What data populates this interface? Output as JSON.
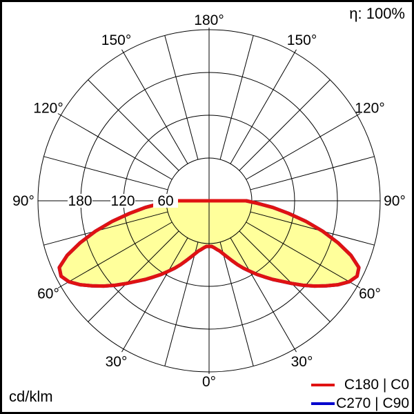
{
  "header": {
    "efficiency": "η: 100%"
  },
  "footer": {
    "units": "cd/klm"
  },
  "legend": {
    "entries": [
      {
        "label": "C180 | C0",
        "color": "#e01212"
      },
      {
        "label": "C270 | C90",
        "color": "#0000cd"
      }
    ]
  },
  "chart_data": {
    "type": "polar",
    "subtype": "luminous-intensity-distribution",
    "units": "cd/klm",
    "efficiency": "η: 100%",
    "radial_max": 240,
    "radial_rings": [
      60,
      120,
      180,
      240
    ],
    "radial_axis_labels": [
      {
        "value": 180,
        "label": "180"
      },
      {
        "value": 120,
        "label": "120"
      },
      {
        "value": 60,
        "label": "60"
      }
    ],
    "angle_labels": [
      "0°",
      "30°",
      "60°",
      "90°",
      "120°",
      "150°",
      "180°"
    ],
    "angle_label_angles": [
      0,
      30,
      60,
      90,
      120,
      150,
      180
    ],
    "grid": {
      "spoke_step_deg": 15,
      "ring_step": 60,
      "legend_position": "bottom-right"
    },
    "series": [
      {
        "name": "C180 | C0",
        "color": "#e01212",
        "fill": "#ffff9b",
        "points_deg_value": [
          [
            0,
            64
          ],
          [
            3,
            64
          ],
          [
            6,
            66
          ],
          [
            9,
            69
          ],
          [
            12,
            72
          ],
          [
            15,
            77
          ],
          [
            18,
            83
          ],
          [
            21,
            90
          ],
          [
            24,
            98
          ],
          [
            27,
            106
          ],
          [
            30,
            114
          ],
          [
            33,
            123
          ],
          [
            36,
            132
          ],
          [
            39,
            142
          ],
          [
            42,
            152
          ],
          [
            45,
            164
          ],
          [
            48,
            177
          ],
          [
            51,
            190
          ],
          [
            54,
            203
          ],
          [
            57,
            216
          ],
          [
            60,
            227
          ],
          [
            63,
            233
          ],
          [
            66,
            230
          ],
          [
            69,
            213
          ],
          [
            72,
            190
          ],
          [
            75,
            165
          ],
          [
            78,
            139
          ],
          [
            81,
            113
          ],
          [
            84,
            90
          ],
          [
            87,
            68
          ],
          [
            90,
            52
          ]
        ]
      },
      {
        "name": "C270 | C90",
        "color": "#0000cd",
        "fill": "none",
        "coincident_with": "C180 | C0",
        "points_deg_value": [
          [
            0,
            64
          ],
          [
            3,
            64
          ],
          [
            6,
            66
          ],
          [
            9,
            69
          ],
          [
            12,
            72
          ],
          [
            15,
            77
          ],
          [
            18,
            83
          ],
          [
            21,
            90
          ],
          [
            24,
            98
          ],
          [
            27,
            106
          ],
          [
            30,
            114
          ],
          [
            33,
            123
          ],
          [
            36,
            132
          ],
          [
            39,
            142
          ],
          [
            42,
            152
          ],
          [
            45,
            164
          ],
          [
            48,
            177
          ],
          [
            51,
            190
          ],
          [
            54,
            203
          ],
          [
            57,
            216
          ],
          [
            60,
            227
          ],
          [
            63,
            233
          ],
          [
            66,
            230
          ],
          [
            69,
            213
          ],
          [
            72,
            190
          ],
          [
            75,
            165
          ],
          [
            78,
            139
          ],
          [
            81,
            113
          ],
          [
            84,
            90
          ],
          [
            87,
            68
          ],
          [
            90,
            52
          ]
        ]
      }
    ]
  }
}
